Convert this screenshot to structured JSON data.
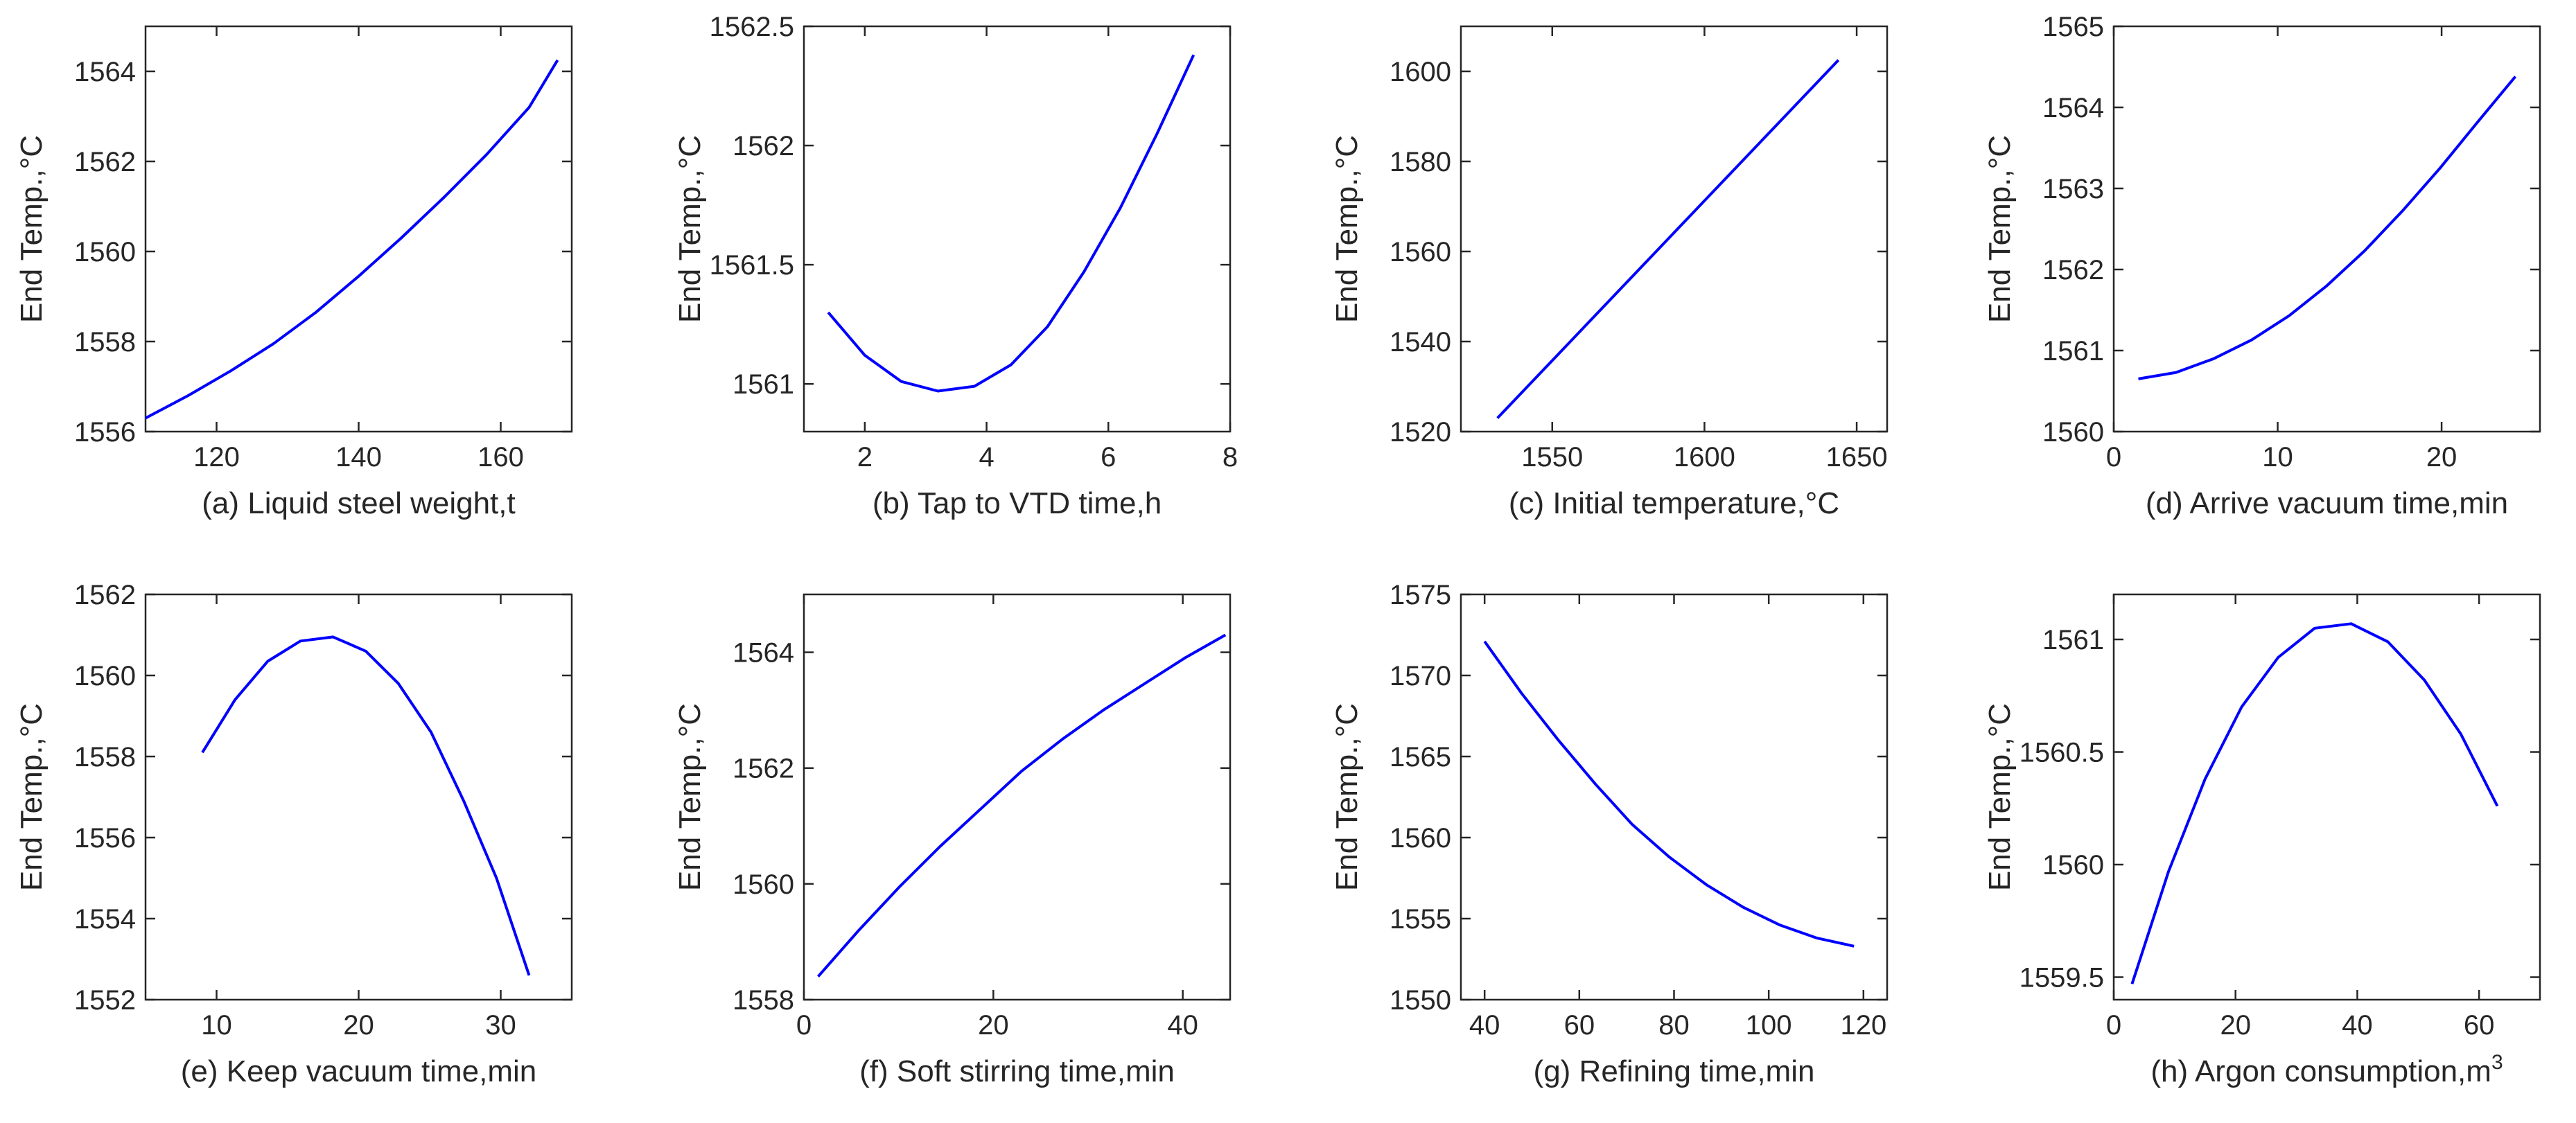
{
  "chart_data": [
    {
      "type": "line",
      "xlabel": "(a) Liquid steel weight,t",
      "ylabel": "End Temp.,°C",
      "xlim": [
        110,
        170
      ],
      "ylim": [
        1556,
        1565
      ],
      "xticks": [
        120,
        140,
        160
      ],
      "xtick_labels": [
        "120",
        "140",
        "160"
      ],
      "yticks": [
        1556,
        1558,
        1560,
        1562,
        1564
      ],
      "ytick_labels": [
        "1556",
        "1558",
        "1560",
        "1562",
        "1564"
      ],
      "x": [
        110,
        116,
        122,
        128,
        134,
        140,
        146,
        152,
        158,
        164,
        168
      ],
      "y": [
        1556.3,
        1556.8,
        1557.35,
        1557.95,
        1558.65,
        1559.45,
        1560.3,
        1561.2,
        1562.15,
        1563.2,
        1564.25
      ]
    },
    {
      "type": "line",
      "xlabel": "(b) Tap to VTD time,h",
      "ylabel": "End Temp.,°C",
      "xlim": [
        1,
        8
      ],
      "ylim": [
        1560.8,
        1562.5
      ],
      "xticks": [
        2,
        4,
        6,
        8
      ],
      "xtick_labels": [
        "2",
        "4",
        "6",
        "8"
      ],
      "yticks": [
        1561,
        1561.5,
        1562,
        1562.5
      ],
      "ytick_labels": [
        "1561",
        "1561.5",
        "1562",
        "1562.5"
      ],
      "x": [
        1.4,
        2.0,
        2.6,
        3.2,
        3.8,
        4.4,
        5.0,
        5.6,
        6.2,
        6.8,
        7.4
      ],
      "y": [
        1561.3,
        1561.12,
        1561.01,
        1560.97,
        1560.99,
        1561.08,
        1561.24,
        1561.47,
        1561.74,
        1562.05,
        1562.38
      ]
    },
    {
      "type": "line",
      "xlabel": "(c) Initial temperature,°C",
      "ylabel": "End Temp.,°C",
      "xlim": [
        1520,
        1660
      ],
      "ylim": [
        1520,
        1610
      ],
      "xticks": [
        1550,
        1600,
        1650
      ],
      "xtick_labels": [
        "1550",
        "1600",
        "1650"
      ],
      "yticks": [
        1520,
        1540,
        1560,
        1580,
        1600
      ],
      "ytick_labels": [
        "1520",
        "1540",
        "1560",
        "1580",
        "1600"
      ],
      "x": [
        1532,
        1644
      ],
      "y": [
        1523,
        1602.5
      ]
    },
    {
      "type": "line",
      "xlabel": "(d) Arrive vacuum time,min",
      "ylabel": "End Temp.,°C",
      "xlim": [
        0,
        26
      ],
      "ylim": [
        1560,
        1565
      ],
      "xticks": [
        0,
        10,
        20
      ],
      "xtick_labels": [
        "0",
        "10",
        "20"
      ],
      "yticks": [
        1560,
        1561,
        1562,
        1563,
        1564,
        1565
      ],
      "ytick_labels": [
        "1560",
        "1561",
        "1562",
        "1563",
        "1564",
        "1565"
      ],
      "x": [
        1.5,
        3.8,
        6.1,
        8.4,
        10.7,
        13.0,
        15.3,
        17.6,
        19.9,
        22.2,
        24.5
      ],
      "y": [
        1560.65,
        1560.73,
        1560.9,
        1561.13,
        1561.43,
        1561.8,
        1562.23,
        1562.72,
        1563.25,
        1563.82,
        1564.38
      ]
    },
    {
      "type": "line",
      "xlabel": "(e) Keep vacuum time,min",
      "ylabel": "End Temp.,°C",
      "xlim": [
        5,
        35
      ],
      "ylim": [
        1552,
        1562
      ],
      "xticks": [
        10,
        20,
        30
      ],
      "xtick_labels": [
        "10",
        "20",
        "30"
      ],
      "yticks": [
        1552,
        1554,
        1556,
        1558,
        1560,
        1562
      ],
      "ytick_labels": [
        "1552",
        "1554",
        "1556",
        "1558",
        "1560",
        "1562"
      ],
      "x": [
        9.0,
        11.3,
        13.6,
        15.9,
        18.2,
        20.5,
        22.8,
        25.1,
        27.4,
        29.7,
        32.0
      ],
      "y": [
        1558.1,
        1559.4,
        1560.35,
        1560.85,
        1560.95,
        1560.6,
        1559.8,
        1558.6,
        1556.9,
        1555.0,
        1552.6
      ]
    },
    {
      "type": "line",
      "xlabel": "(f) Soft stirring time,min",
      "ylabel": "End Temp.,°C",
      "xlim": [
        0,
        45
      ],
      "ylim": [
        1558,
        1565
      ],
      "xticks": [
        0,
        20,
        40
      ],
      "xtick_labels": [
        "0",
        "20",
        "40"
      ],
      "yticks": [
        1558,
        1560,
        1562,
        1564
      ],
      "ytick_labels": [
        "1558",
        "1560",
        "1562",
        "1564"
      ],
      "x": [
        1.5,
        5.8,
        10.1,
        14.4,
        18.7,
        23.0,
        27.3,
        31.6,
        35.9,
        40.2,
        44.5
      ],
      "y": [
        1558.4,
        1559.2,
        1559.95,
        1560.65,
        1561.3,
        1561.95,
        1562.5,
        1563.0,
        1563.45,
        1563.9,
        1564.3
      ]
    },
    {
      "type": "line",
      "xlabel": "(g) Refining time,min",
      "ylabel": "End Temp.,°C",
      "xlim": [
        35,
        125
      ],
      "ylim": [
        1550,
        1575
      ],
      "xticks": [
        40,
        60,
        80,
        100,
        120
      ],
      "xtick_labels": [
        "40",
        "60",
        "80",
        "100",
        "120"
      ],
      "yticks": [
        1550,
        1555,
        1560,
        1565,
        1570,
        1575
      ],
      "ytick_labels": [
        "1550",
        "1555",
        "1560",
        "1565",
        "1570",
        "1575"
      ],
      "x": [
        40,
        47.8,
        55.6,
        63.4,
        71.2,
        79.0,
        86.8,
        94.6,
        102.4,
        110.2,
        118
      ],
      "y": [
        1572.1,
        1568.9,
        1566.0,
        1563.3,
        1560.8,
        1558.8,
        1557.1,
        1555.7,
        1554.6,
        1553.8,
        1553.3
      ]
    },
    {
      "type": "line",
      "xlabel": "(h) Argon consumption,m",
      "xlabel_superscript": "3",
      "ylabel": "End Temp.,°C",
      "xlim": [
        0,
        70
      ],
      "ylim": [
        1559.4,
        1561.2
      ],
      "xticks": [
        0,
        20,
        40,
        60
      ],
      "xtick_labels": [
        "0",
        "20",
        "40",
        "60"
      ],
      "yticks": [
        1559.5,
        1560,
        1560.5,
        1561
      ],
      "ytick_labels": [
        "1559.5",
        "1560",
        "1560.5",
        "1561"
      ],
      "x": [
        3,
        9,
        15,
        21,
        27,
        33,
        39,
        45,
        51,
        57,
        63
      ],
      "y": [
        1559.47,
        1559.97,
        1560.38,
        1560.7,
        1560.92,
        1561.05,
        1561.07,
        1560.99,
        1560.82,
        1560.58,
        1560.26
      ]
    }
  ]
}
